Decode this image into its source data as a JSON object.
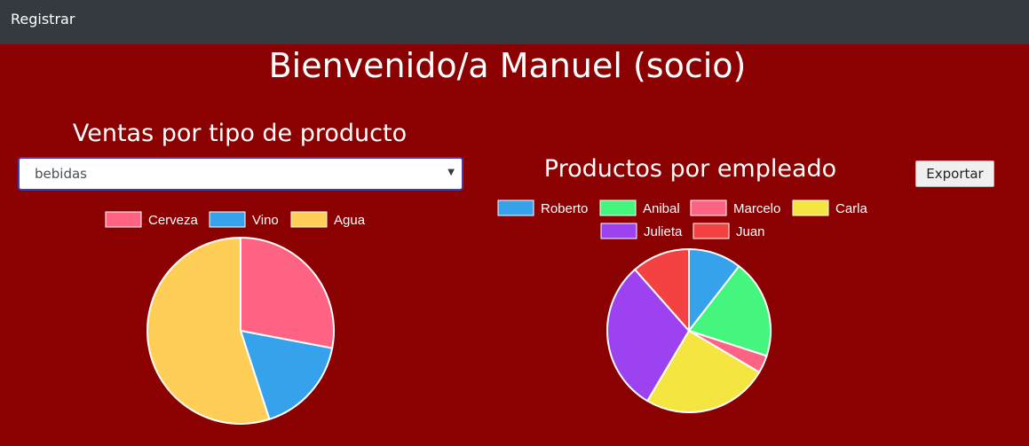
{
  "navbar": {
    "register_label": "Registrar"
  },
  "page": {
    "title": "Bienvenido/a Manuel (socio)"
  },
  "sales_section": {
    "title": "Ventas por tipo de producto",
    "select_value": "bebidas"
  },
  "employee_section": {
    "title": "Productos por empleado",
    "export_label": "Exportar"
  },
  "chart_data": [
    {
      "type": "pie",
      "labels": [
        "Cerveza",
        "Vino",
        "Agua"
      ],
      "values": [
        28,
        17,
        55
      ],
      "colors": [
        "#ff6384",
        "#36a2eb",
        "#ffce56"
      ]
    },
    {
      "type": "pie",
      "labels": [
        "Roberto",
        "Anibal",
        "Marcelo",
        "Carla",
        "Julieta",
        "Juan"
      ],
      "values": [
        10.5,
        19.5,
        3.5,
        25,
        30,
        11.5
      ],
      "colors": [
        "#36a2eb",
        "#44f57e",
        "#ff6384",
        "#f4e541",
        "#9c42f0",
        "#f44242"
      ]
    }
  ]
}
